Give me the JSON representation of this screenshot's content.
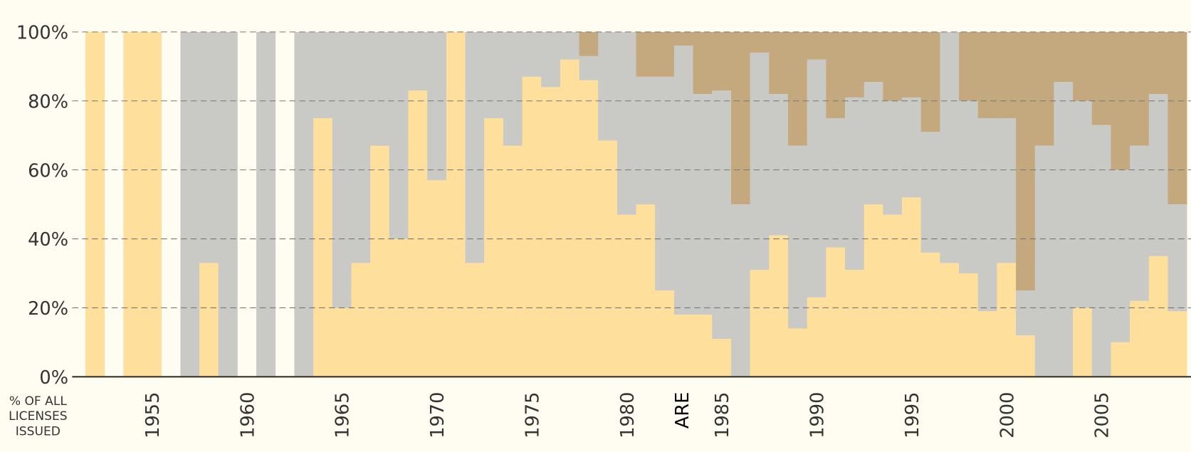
{
  "chart_data": {
    "type": "stacked-bar",
    "y_label": "% OF ALL LICENSES ISSUED",
    "annotation": {
      "x": 1982.9,
      "text": "ARE"
    },
    "x": [
      1952,
      1953,
      1954,
      1955,
      1956,
      1957,
      1958,
      1959,
      1960,
      1961,
      1962,
      1963,
      1964,
      1965,
      1966,
      1967,
      1968,
      1969,
      1970,
      1971,
      1972,
      1973,
      1974,
      1975,
      1976,
      1977,
      1978,
      1979,
      1980,
      1981,
      1982,
      1983,
      1984,
      1985,
      1986,
      1987,
      1988,
      1989,
      1990,
      1991,
      1992,
      1993,
      1994,
      1995,
      1996,
      1997,
      1998,
      1999,
      2000,
      2001,
      2002,
      2003,
      2004,
      2005,
      2006,
      2007,
      2008,
      2009
    ],
    "series": [
      {
        "color": "#fedf9c",
        "values": [
          100,
          null,
          100,
          100,
          null,
          0,
          33,
          0,
          null,
          0,
          null,
          0,
          75,
          20,
          33,
          67,
          40,
          83,
          57,
          100,
          33,
          75,
          67,
          87,
          84,
          92,
          86,
          68.5,
          47,
          50,
          25,
          18,
          18,
          11,
          0,
          31,
          41,
          14,
          23,
          37.5,
          31,
          50,
          47,
          52,
          36,
          33,
          30,
          19,
          33,
          12,
          0,
          0,
          20,
          0,
          10,
          22,
          35,
          19
        ]
      },
      {
        "color": "#c9c9c5",
        "values": [
          0,
          null,
          0,
          0,
          null,
          100,
          67,
          100,
          null,
          100,
          null,
          100,
          25,
          80,
          67,
          33,
          60,
          17,
          43,
          0,
          67,
          25,
          33,
          13,
          16,
          8,
          7,
          31.5,
          53,
          37,
          62,
          78,
          64,
          72,
          50,
          63,
          41,
          53,
          69,
          37.5,
          50,
          35.5,
          33,
          29,
          35,
          67,
          50,
          56,
          42,
          13,
          67,
          85.5,
          60,
          73,
          50,
          45,
          47,
          31
        ]
      },
      {
        "color": "#c4a97f",
        "values": [
          0,
          null,
          0,
          0,
          null,
          0,
          0,
          0,
          null,
          0,
          null,
          0,
          0,
          0,
          0,
          0,
          0,
          0,
          0,
          0,
          0,
          0,
          0,
          0,
          0,
          0,
          7,
          0,
          0,
          13,
          13,
          4,
          18,
          17,
          50,
          6,
          18,
          33,
          8,
          25,
          19,
          14.5,
          20,
          19,
          29,
          0,
          20,
          25,
          25,
          75,
          33,
          14.5,
          20,
          27,
          40,
          33,
          18,
          50
        ]
      }
    ],
    "xlim": [
      1951.5,
      2009.72
    ],
    "xticks": [
      1955,
      1960,
      1965,
      1970,
      1975,
      1980,
      1985,
      1990,
      1995,
      2000,
      2005
    ],
    "ylim": [
      0,
      100
    ],
    "yticks": [
      {
        "value": 0,
        "label": "0%"
      },
      {
        "value": 20,
        "label": "20%"
      },
      {
        "value": 40,
        "label": "40%"
      },
      {
        "value": 60,
        "label": "60%"
      },
      {
        "value": 80,
        "label": "80%"
      },
      {
        "value": 100,
        "label": "100%"
      }
    ],
    "grid": true
  }
}
